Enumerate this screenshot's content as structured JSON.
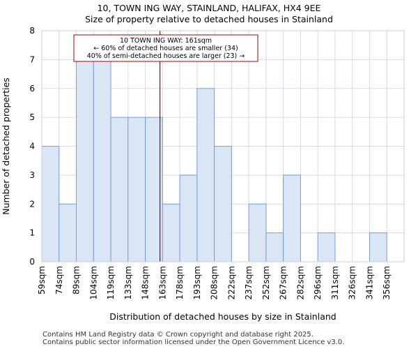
{
  "chart_data": {
    "type": "bar",
    "title": "10, TOWN ING WAY, STAINLAND, HALIFAX, HX4 9EE",
    "subtitle": "Size of property relative to detached houses in Stainland",
    "xlabel": "Distribution of detached houses by size in Stainland",
    "ylabel": "Number of detached properties",
    "categories": [
      "59sqm",
      "74sqm",
      "89sqm",
      "104sqm",
      "119sqm",
      "133sqm",
      "148sqm",
      "163sqm",
      "178sqm",
      "193sqm",
      "208sqm",
      "222sqm",
      "237sqm",
      "252sqm",
      "267sqm",
      "282sqm",
      "296sqm",
      "311sqm",
      "326sqm",
      "341sqm",
      "356sqm"
    ],
    "values": [
      4,
      2,
      7,
      7,
      5,
      5,
      5,
      2,
      3,
      6,
      4,
      0,
      2,
      1,
      3,
      0,
      1,
      0,
      0,
      1,
      0
    ],
    "ylim": [
      0,
      8
    ],
    "yticks": [
      0,
      1,
      2,
      3,
      4,
      5,
      6,
      7,
      8
    ],
    "grid": true,
    "colors": {
      "bar_fill": "#dae5f5",
      "bar_stroke": "#7a9ed6",
      "grid": "#d4dbe8",
      "marker": "#990000",
      "annotation_border": "#aa0000"
    },
    "marker": {
      "value_sqm": 161,
      "position_bins": 6.85
    },
    "annotation": {
      "line1": "10 TOWN ING WAY: 161sqm",
      "line2": "← 60% of detached houses are smaller (34)",
      "line3": "40% of semi-detached houses are larger (23) →"
    }
  },
  "footer": {
    "line1": "Contains HM Land Registry data © Crown copyright and database right 2025.",
    "line2": "Contains public sector information licensed under the Open Government Licence v3.0."
  }
}
